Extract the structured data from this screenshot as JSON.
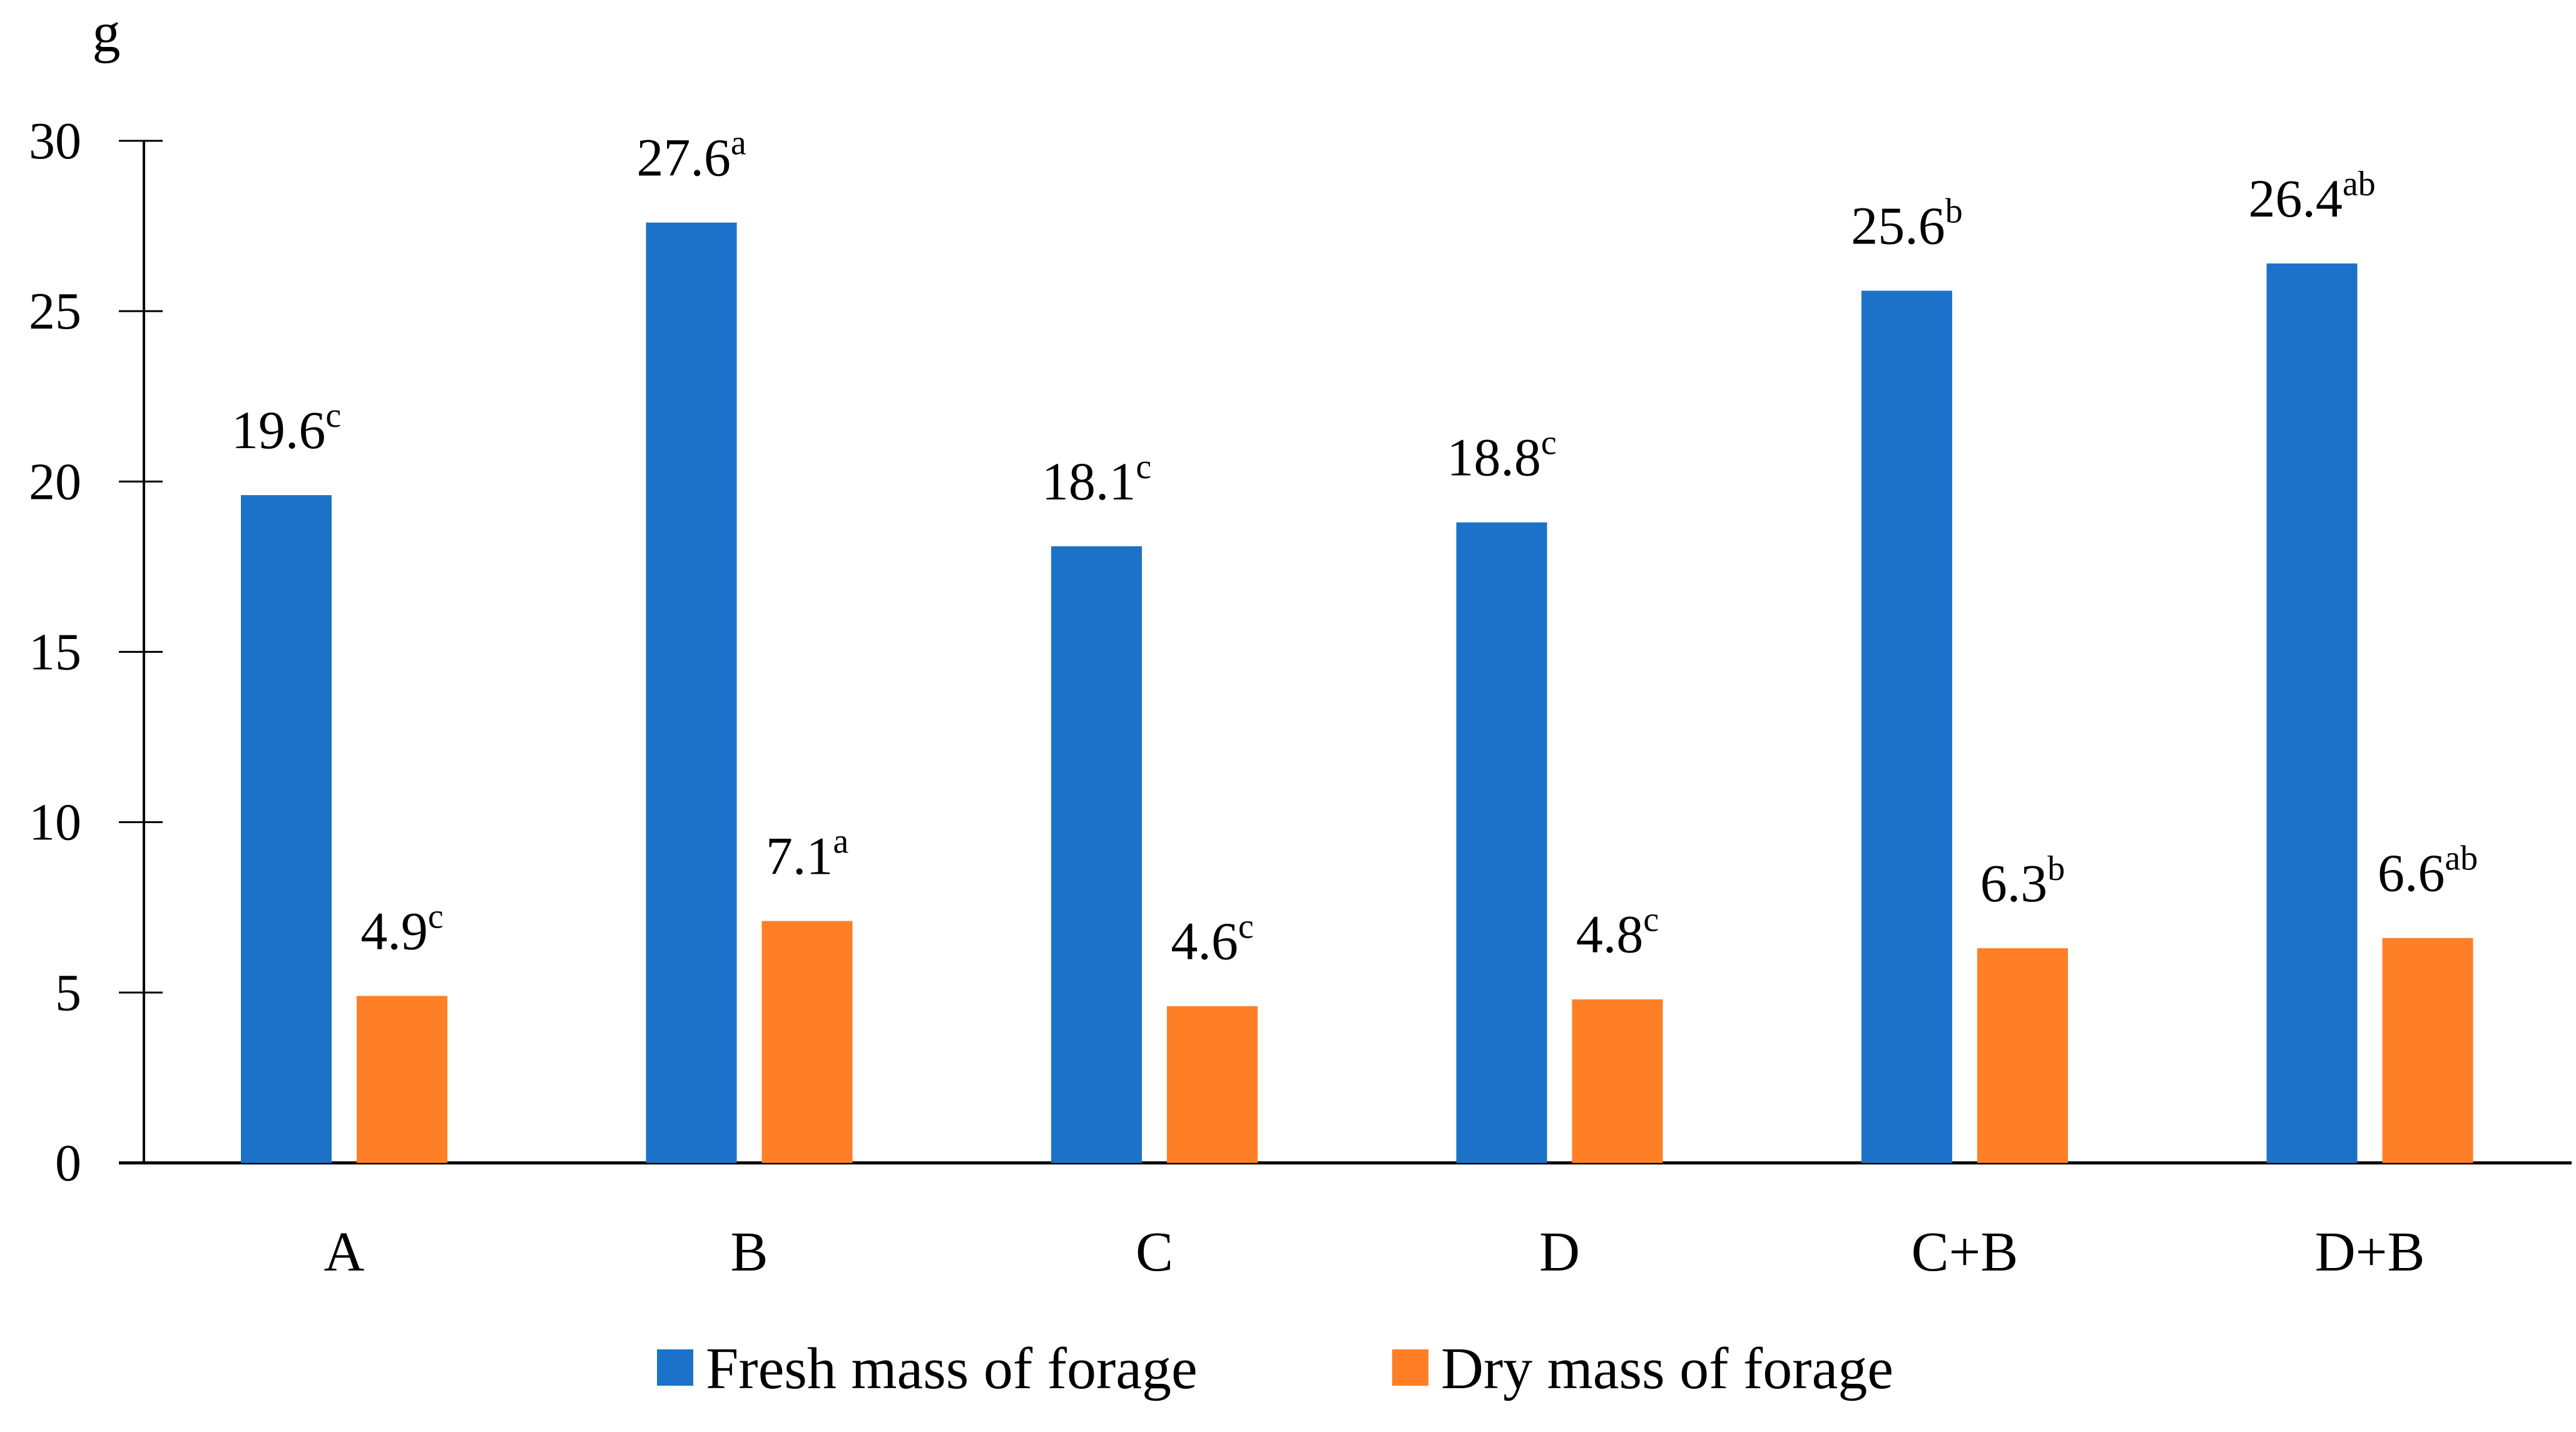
{
  "chart_data": {
    "type": "bar",
    "unit_label": "g",
    "categories": [
      "A",
      "B",
      "C",
      "D",
      "C+B",
      "D+B"
    ],
    "ylim": [
      0,
      30
    ],
    "yticks": [
      0,
      5,
      10,
      15,
      20,
      25,
      30
    ],
    "series": [
      {
        "name": "Fresh mass of forage",
        "color": "#1b72c8",
        "values": [
          19.6,
          27.6,
          18.1,
          18.8,
          25.6,
          26.4
        ],
        "labels": [
          "19.6",
          "27.6",
          "18.1",
          "18.8",
          "25.6",
          "26.4"
        ],
        "letters": [
          "c",
          "a",
          "c",
          "c",
          "b",
          "ab"
        ]
      },
      {
        "name": "Dry mass of forage",
        "color": "#fe7f26",
        "values": [
          4.9,
          7.1,
          4.6,
          4.8,
          6.3,
          6.6
        ],
        "labels": [
          "4.9",
          "7.1",
          "4.6",
          "4.8",
          "6.3",
          "6.6"
        ],
        "letters": [
          "c",
          "a",
          "c",
          "c",
          "b",
          "ab"
        ]
      }
    ],
    "legend_position": "bottom"
  }
}
